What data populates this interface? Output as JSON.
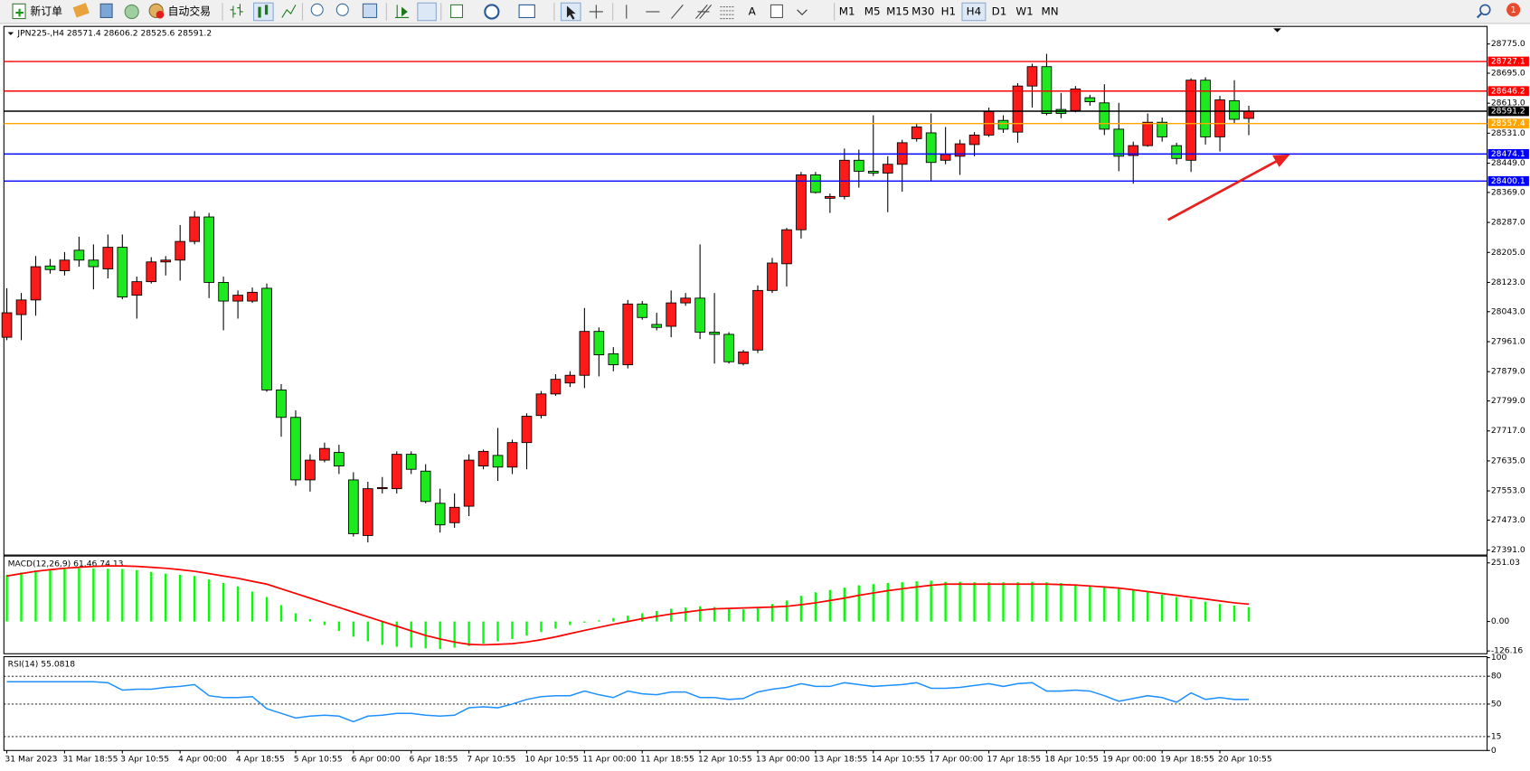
{
  "toolbar": {
    "new_order": "新订单",
    "auto_trading": "自动交易",
    "timeframes": [
      "M1",
      "M5",
      "M15",
      "M30",
      "H1",
      "H4",
      "D1",
      "W1",
      "MN"
    ],
    "active_timeframe": "H4",
    "notifications": 1
  },
  "chart_data": [
    {
      "type": "candlestick",
      "title": "JPN225-,H4  28571.4 28606.2 28525.6 28591.2",
      "up_color": "#ff1a1a",
      "down_color": "#1ee81e",
      "categories": [
        "31 Mar 2023",
        null,
        null,
        null,
        "31 Mar 18:55",
        null,
        null,
        null,
        "3 Apr 10:55",
        null,
        null,
        null,
        "4 Apr 00:00",
        null,
        null,
        null,
        "4 Apr 18:55",
        null,
        null,
        null,
        "5 Apr 10:55",
        null,
        null,
        null,
        "6 Apr 00:00",
        null,
        null,
        null,
        "6 Apr 18:55",
        null,
        null,
        null,
        "7 Apr 10:55",
        null,
        null,
        null,
        "10 Apr 10:55",
        null,
        null,
        null,
        "11 Apr 00:00",
        null,
        null,
        null,
        "11 Apr 18:55",
        null,
        null,
        null,
        "12 Apr 10:55",
        null,
        null,
        null,
        "13 Apr 00:00",
        null,
        null,
        null,
        "13 Apr 18:55",
        null,
        null,
        null,
        "14 Apr 10:55",
        null,
        null,
        null,
        "17 Apr 00:00",
        null,
        null,
        null,
        "17 Apr 18:55",
        null,
        null,
        null,
        "18 Apr 10:55",
        null,
        null,
        null,
        "19 Apr 00:00",
        null,
        null,
        null,
        "19 Apr 18:55",
        null,
        null,
        null,
        "20 Apr 10:55",
        null,
        null
      ],
      "ohlc": [
        [
          27973,
          28107,
          27965,
          28040
        ],
        [
          28035,
          28094,
          27965,
          28075
        ],
        [
          28075,
          28195,
          28032,
          28166
        ],
        [
          28168,
          28187,
          28147,
          28158
        ],
        [
          28155,
          28206,
          28142,
          28184
        ],
        [
          28211,
          28248,
          28166,
          28184
        ],
        [
          28184,
          28227,
          28104,
          28166
        ],
        [
          28160,
          28254,
          28134,
          28219
        ],
        [
          28219,
          28254,
          28077,
          28083
        ],
        [
          28088,
          28139,
          28024,
          28125
        ],
        [
          28125,
          28192,
          28120,
          28179
        ],
        [
          28179,
          28195,
          28142,
          28184
        ],
        [
          28184,
          28280,
          28128,
          28235
        ],
        [
          28235,
          28318,
          28227,
          28302
        ],
        [
          28302,
          28313,
          28080,
          28123
        ],
        [
          28123,
          28139,
          27992,
          28072
        ],
        [
          28072,
          28101,
          28024,
          28088
        ],
        [
          28072,
          28109,
          28067,
          28096
        ],
        [
          28107,
          28120,
          27824,
          27829
        ],
        [
          27829,
          27845,
          27701,
          27754
        ],
        [
          27754,
          27773,
          27567,
          27583
        ],
        [
          27583,
          27653,
          27551,
          27637
        ],
        [
          27637,
          27685,
          27631,
          27669
        ],
        [
          27658,
          27679,
          27599,
          27621
        ],
        [
          27583,
          27604,
          27428,
          27436
        ],
        [
          27431,
          27578,
          27412,
          27559
        ],
        [
          27559,
          27591,
          27546,
          27562
        ],
        [
          27559,
          27661,
          27546,
          27653
        ],
        [
          27653,
          27661,
          27599,
          27612
        ],
        [
          27607,
          27626,
          27519,
          27524
        ],
        [
          27519,
          27559,
          27439,
          27460
        ],
        [
          27466,
          27546,
          27452,
          27508
        ],
        [
          27511,
          27653,
          27484,
          27637
        ],
        [
          27621,
          27666,
          27612,
          27661
        ],
        [
          27650,
          27725,
          27580,
          27618
        ],
        [
          27618,
          27693,
          27599,
          27685
        ],
        [
          27685,
          27765,
          27612,
          27757
        ],
        [
          27759,
          27826,
          27751,
          27818
        ],
        [
          27818,
          27872,
          27813,
          27858
        ],
        [
          27848,
          27880,
          27837,
          27869
        ],
        [
          27869,
          28053,
          27834,
          27989
        ],
        [
          27989,
          28000,
          27866,
          27925
        ],
        [
          27928,
          27946,
          27880,
          27898
        ],
        [
          27898,
          28075,
          27888,
          28064
        ],
        [
          28064,
          28072,
          28021,
          28027
        ],
        [
          28008,
          28040,
          27992,
          28000
        ],
        [
          28003,
          28101,
          27973,
          28067
        ],
        [
          28067,
          28094,
          28059,
          28080
        ],
        [
          28080,
          28227,
          27968,
          27987
        ],
        [
          27987,
          28094,
          27901,
          27981
        ],
        [
          27981,
          27987,
          27901,
          27906
        ],
        [
          27901,
          27938,
          27896,
          27933
        ],
        [
          27938,
          28115,
          27930,
          28101
        ],
        [
          28101,
          28190,
          28094,
          28176
        ],
        [
          28174,
          28272,
          28112,
          28267
        ],
        [
          28267,
          28425,
          28243,
          28417
        ],
        [
          28417,
          28425,
          28366,
          28369
        ],
        [
          28353,
          28366,
          28313,
          28358
        ],
        [
          28358,
          28489,
          28350,
          28457
        ],
        [
          28457,
          28486,
          28382,
          28427
        ],
        [
          28427,
          28580,
          28414,
          28422
        ],
        [
          28422,
          28468,
          28315,
          28446
        ],
        [
          28446,
          28513,
          28371,
          28505
        ],
        [
          28516,
          28558,
          28508,
          28548
        ],
        [
          28532,
          28585,
          28398,
          28451
        ],
        [
          28457,
          28548,
          28446,
          28473
        ],
        [
          28468,
          28513,
          28417,
          28502
        ],
        [
          28500,
          28534,
          28468,
          28526
        ],
        [
          28526,
          28601,
          28521,
          28590
        ],
        [
          28566,
          28580,
          28532,
          28542
        ],
        [
          28534,
          28668,
          28505,
          28660
        ],
        [
          28660,
          28721,
          28601,
          28713
        ],
        [
          28713,
          28748,
          28580,
          28585
        ],
        [
          28596,
          28641,
          28572,
          28585
        ],
        [
          28593,
          28660,
          28588,
          28652
        ],
        [
          28628,
          28636,
          28606,
          28617
        ],
        [
          28614,
          28665,
          28526,
          28542
        ],
        [
          28542,
          28614,
          28427,
          28468
        ],
        [
          28470,
          28508,
          28393,
          28497
        ],
        [
          28497,
          28585,
          28494,
          28561
        ],
        [
          28561,
          28574,
          28508,
          28521
        ],
        [
          28497,
          28505,
          28446,
          28462
        ],
        [
          28457,
          28681,
          28425,
          28676
        ],
        [
          28676,
          28684,
          28500,
          28521
        ],
        [
          28521,
          28633,
          28481,
          28622
        ],
        [
          28620,
          28676,
          28558,
          28569
        ],
        [
          28571.4,
          28606.2,
          28525.6,
          28591.2
        ]
      ],
      "ylim": [
        27380.2,
        28820.4
      ],
      "yticks": [
        {
          "value": 28775,
          "label": "28775.0"
        },
        {
          "value": 28695,
          "label": "28695.0"
        },
        {
          "value": 28613,
          "label": "28613.0"
        },
        {
          "value": 28531,
          "label": "28531.0"
        },
        {
          "value": 28449,
          "label": "28449.0"
        },
        {
          "value": 28369,
          "label": "28369.0"
        },
        {
          "value": 28287,
          "label": "28287.0"
        },
        {
          "value": 28205,
          "label": "28205.0"
        },
        {
          "value": 28123,
          "label": "28123.0"
        },
        {
          "value": 28043,
          "label": "28043.0"
        },
        {
          "value": 27961,
          "label": "27961.0"
        },
        {
          "value": 27879,
          "label": "27879.0"
        },
        {
          "value": 27799,
          "label": "27799.0"
        },
        {
          "value": 27717,
          "label": "27717.0"
        },
        {
          "value": 27635,
          "label": "27635.0"
        },
        {
          "value": 27553,
          "label": "27553.0"
        },
        {
          "value": 27473,
          "label": "27473.0"
        },
        {
          "value": 27391,
          "label": "27391.0"
        }
      ],
      "levels": [
        {
          "value": 28727.1,
          "color": "#ff0000"
        },
        {
          "value": 28646.2,
          "color": "#ff0000"
        },
        {
          "value": 28591.2,
          "color": "#000000"
        },
        {
          "value": 28557.4,
          "color": "#ffa500"
        },
        {
          "value": 28474.1,
          "color": "#0000ff"
        },
        {
          "value": 28400.1,
          "color": "#0000ff"
        }
      ]
    },
    {
      "type": "macd",
      "title": "MACD(12,26,9) 61.46 74.13",
      "histogram": {
        "color": "#00ff00",
        "values": [
          200,
          210,
          218,
          222,
          225,
          228,
          228,
          226,
          225,
          220,
          212,
          205,
          200,
          195,
          180,
          165,
          150,
          128,
          105,
          70,
          35,
          10,
          -15,
          -40,
          -65,
          -85,
          -100,
          -108,
          -112,
          -115,
          -118,
          -112,
          -105,
          -95,
          -85,
          -75,
          -60,
          -45,
          -30,
          -15,
          -5,
          5,
          15,
          25,
          35,
          45,
          55,
          60,
          65,
          62,
          55,
          52,
          60,
          75,
          90,
          110,
          125,
          135,
          145,
          155,
          160,
          165,
          168,
          172,
          175,
          170,
          170,
          168,
          168,
          168,
          168,
          170,
          168,
          165,
          160,
          155,
          150,
          142,
          135,
          125,
          115,
          105,
          95,
          85,
          75,
          68,
          61.46
        ]
      },
      "signal": {
        "color": "#ff0000",
        "values": [
          195,
          205,
          215,
          222,
          228,
          232,
          236,
          238,
          238,
          236,
          232,
          228,
          222,
          215,
          205,
          195,
          185,
          172,
          160,
          140,
          120,
          100,
          80,
          60,
          40,
          20,
          0,
          -20,
          -40,
          -60,
          -75,
          -88,
          -98,
          -100,
          -98,
          -95,
          -88,
          -78,
          -66,
          -52,
          -38,
          -25,
          -12,
          0,
          12,
          22,
          32,
          40,
          48,
          54,
          56,
          58,
          60,
          62,
          65,
          72,
          80,
          90,
          100,
          112,
          122,
          132,
          140,
          148,
          155,
          160,
          160,
          160,
          160,
          160,
          160,
          160,
          160,
          158,
          156,
          152,
          148,
          143,
          136,
          128,
          120,
          112,
          104,
          96,
          88,
          80,
          74.13
        ]
      },
      "ylim": [
        -133.9,
        276.2
      ],
      "yticks": [
        251.03,
        {
          "value": 0,
          "label": "0.00"
        },
        -126.16
      ]
    },
    {
      "type": "rsi",
      "title": "RSI(14) 55.0818",
      "color": "#1e90ff",
      "values": [
        74,
        74,
        74,
        74,
        74,
        74,
        74,
        73,
        65,
        66,
        66,
        68,
        69,
        71,
        59,
        57,
        57,
        58,
        45,
        40,
        35,
        37,
        38,
        37,
        31,
        37,
        38,
        40,
        40,
        38,
        37,
        38,
        46,
        47,
        46,
        50,
        55,
        58,
        59,
        59,
        64,
        60,
        57,
        64,
        61,
        60,
        63,
        63,
        57,
        57,
        55,
        56,
        63,
        66,
        68,
        72,
        69,
        69,
        73,
        71,
        69,
        70,
        71,
        73,
        67,
        67,
        68,
        70,
        72,
        69,
        72,
        73,
        64,
        64,
        65,
        64,
        59,
        53,
        56,
        59,
        57,
        52,
        62,
        55,
        57,
        55,
        55.0818
      ],
      "ylim": [
        0,
        100
      ],
      "yticks": [
        100,
        80,
        50,
        15,
        0
      ],
      "levels": [
        80,
        50,
        15
      ]
    }
  ]
}
